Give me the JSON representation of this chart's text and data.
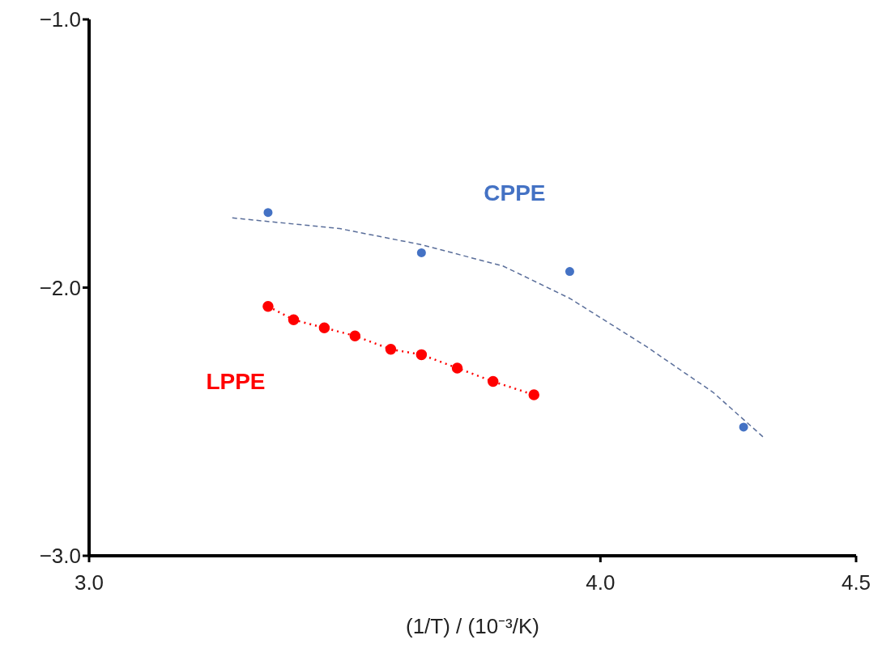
{
  "chart_data": {
    "type": "scatter",
    "xlabel": "(1/T) / (10⁻³/K)",
    "xlim": [
      3.0,
      4.5
    ],
    "xticks": [
      {
        "value": 3.0,
        "label": "3.0"
      },
      {
        "value": 4.0,
        "label": "4.0"
      },
      {
        "value": 4.5,
        "label": "4.5"
      }
    ],
    "ylim": [
      -3.0,
      -1.0
    ],
    "yticks": [
      {
        "value": -3.0,
        "label": "−3.0"
      },
      {
        "value": -2.0,
        "label": "−2.0"
      },
      {
        "value": -1.0,
        "label": "−1.0"
      }
    ],
    "marker": "circle",
    "series": [
      {
        "name": "CPPE",
        "color": "#4472c4",
        "x": [
          3.35,
          3.65,
          3.94,
          4.28
        ],
        "values": [
          -1.72,
          -1.87,
          -1.94,
          -2.52
        ]
      },
      {
        "type": "line",
        "color": "#5a6e9a",
        "line_style": "dashed",
        "marker": "none",
        "x": [
          3.28,
          3.49,
          3.65,
          3.81,
          3.94,
          4.09,
          4.22,
          4.32
        ],
        "values": [
          -1.74,
          -1.78,
          -1.84,
          -1.92,
          -2.04,
          -2.22,
          -2.39,
          -2.56
        ]
      },
      {
        "name": "LPPE",
        "type": "line",
        "color": "#ff0000",
        "line_style": "dotted",
        "x": [
          3.35,
          3.4,
          3.46,
          3.52,
          3.59,
          3.65,
          3.72,
          3.79,
          3.87
        ],
        "values": [
          -2.07,
          -2.12,
          -2.15,
          -2.18,
          -2.23,
          -2.25,
          -2.3,
          -2.35,
          -2.4
        ]
      }
    ]
  }
}
